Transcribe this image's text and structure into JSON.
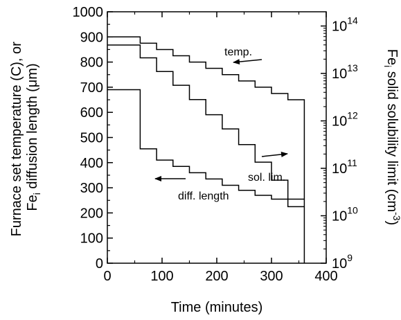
{
  "chart_data": {
    "type": "line",
    "xlabel": "Time (minutes)",
    "ylabel_left": [
      "Furnace set temperature (C), or",
      "Fe",
      "i",
      " diffusion length (",
      "μ",
      "m)"
    ],
    "ylabel_right": [
      "Fe",
      "i",
      " solid solubility limit (cm",
      "-3",
      ")"
    ],
    "x_ticks": [
      "0",
      "100",
      "200",
      "300",
      "400"
    ],
    "x_tick_values": [
      0,
      100,
      200,
      300,
      400
    ],
    "xlim": [
      0,
      400
    ],
    "y_left_ticks": [
      "0",
      "100",
      "200",
      "300",
      "400",
      "500",
      "600",
      "700",
      "800",
      "900",
      "1000"
    ],
    "y_left_tick_values": [
      0,
      100,
      200,
      300,
      400,
      500,
      600,
      700,
      800,
      900,
      1000
    ],
    "ylim_left": [
      0,
      1000
    ],
    "y_right_ticks": [
      {
        "base": "10",
        "exp": "9",
        "value": 9
      },
      {
        "base": "10",
        "exp": "10",
        "value": 10
      },
      {
        "base": "10",
        "exp": "11",
        "value": 11
      },
      {
        "base": "10",
        "exp": "12",
        "value": 12
      },
      {
        "base": "10",
        "exp": "13",
        "value": 13
      },
      {
        "base": "10",
        "exp": "14",
        "value": 14
      }
    ],
    "ylim_right_log10": [
      9,
      14.3
    ],
    "grid": false,
    "series": [
      {
        "name": "temp.",
        "axis": "left",
        "x": [
          0,
          60,
          60,
          90,
          90,
          120,
          120,
          150,
          150,
          180,
          180,
          210,
          210,
          240,
          240,
          270,
          270,
          300,
          300,
          330,
          330,
          360,
          360
        ],
        "y": [
          900,
          900,
          875,
          875,
          850,
          850,
          825,
          825,
          800,
          800,
          775,
          775,
          750,
          750,
          725,
          725,
          700,
          700,
          675,
          675,
          650,
          650,
          0
        ]
      },
      {
        "name": "sol. lim.",
        "axis": "right",
        "x": [
          0,
          60,
          60,
          90,
          90,
          120,
          120,
          150,
          150,
          180,
          180,
          210,
          210,
          240,
          240,
          270,
          270,
          300,
          300,
          330,
          330,
          360
        ],
        "y": [
          13.6,
          13.6,
          13.33,
          13.33,
          13.04,
          13.04,
          12.75,
          12.75,
          12.45,
          12.45,
          12.13,
          12.13,
          11.83,
          11.83,
          11.5,
          11.5,
          11.13,
          11.13,
          10.75,
          10.75,
          10.35,
          10.35
        ]
      },
      {
        "name": "diff. length",
        "axis": "left",
        "x": [
          0,
          60,
          60,
          90,
          90,
          120,
          120,
          150,
          150,
          180,
          180,
          210,
          210,
          240,
          240,
          270,
          270,
          300,
          300,
          330,
          330,
          360
        ],
        "y": [
          690,
          690,
          455,
          455,
          410,
          410,
          385,
          385,
          360,
          360,
          335,
          335,
          310,
          310,
          290,
          290,
          270,
          270,
          255,
          255,
          225,
          225
        ]
      }
    ],
    "annotations": [
      {
        "text": "temp.",
        "series": "temp."
      },
      {
        "text": "sol. lim.",
        "series": "sol. lim."
      },
      {
        "text": "diff. length",
        "series": "diff. length"
      }
    ]
  }
}
